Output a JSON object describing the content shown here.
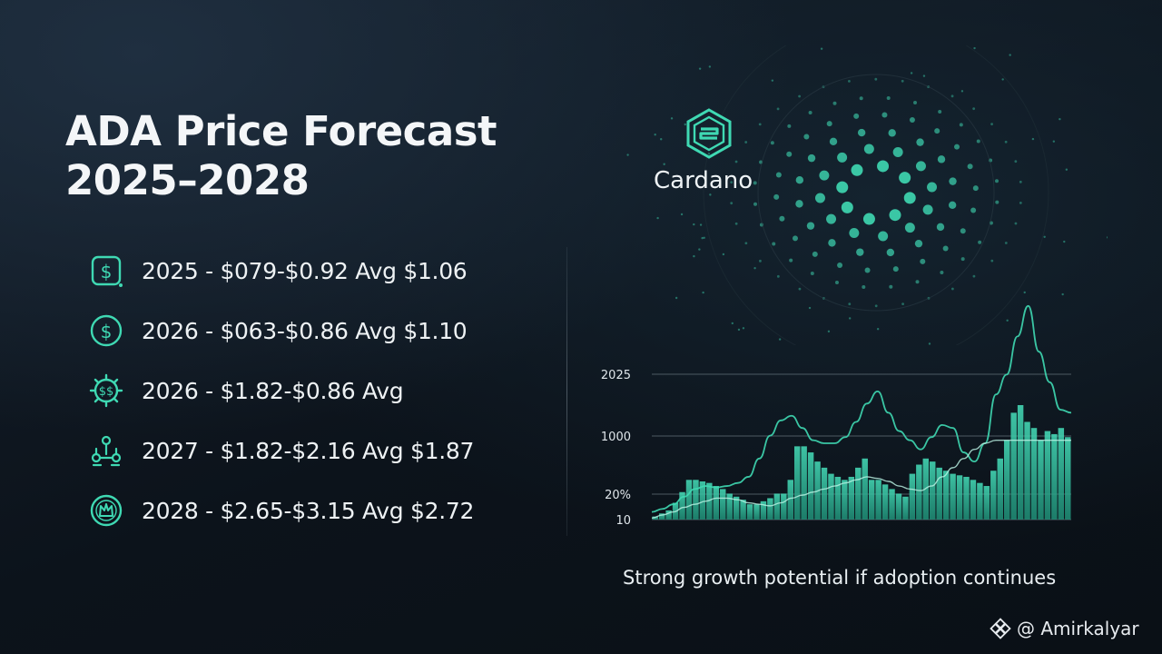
{
  "title": {
    "line1": "ADA Price Forecast",
    "line2": "2025–2028"
  },
  "forecasts": [
    {
      "icon": "dollar-square-icon",
      "text": "2025 - $079-$0.92 Avg $1.06"
    },
    {
      "icon": "dollar-circle-icon",
      "text": "2026 - $063-$0.86 Avg $1.10"
    },
    {
      "icon": "dollar-gear-icon",
      "text": "2026 - $1.82-$0.86 Avg"
    },
    {
      "icon": "network-nodes-icon",
      "text": "2027 - $1.82-$2.16 Avg $1.87"
    },
    {
      "icon": "crown-circle-icon",
      "text": "2028 - $2.65-$3.15 Avg $2.72"
    }
  ],
  "brand": {
    "name": "Cardano",
    "logo_icon": "cardano-hexagon-logo-icon"
  },
  "chart_data": {
    "type": "bar",
    "ytick_labels": [
      "2025",
      "1000",
      "20%",
      "10"
    ],
    "bars": [
      2,
      4,
      6,
      11,
      18,
      26,
      26,
      25,
      24,
      22,
      20,
      17,
      15,
      13,
      10,
      10,
      12,
      14,
      17,
      17,
      26,
      48,
      48,
      44,
      38,
      34,
      30,
      28,
      26,
      28,
      34,
      40,
      26,
      26,
      23,
      20,
      17,
      15,
      30,
      36,
      40,
      38,
      34,
      32,
      30,
      29,
      28,
      26,
      24,
      22,
      32,
      40,
      52,
      70,
      75,
      64,
      60,
      52,
      58,
      56,
      60,
      54
    ],
    "line_upper": [
      5,
      7,
      10,
      15,
      20,
      22,
      21,
      22,
      24,
      28,
      40,
      55,
      65,
      68,
      60,
      52,
      50,
      50,
      54,
      64,
      76,
      84,
      70,
      58,
      52,
      46,
      54,
      62,
      60,
      44,
      38,
      50,
      82,
      95,
      120,
      140,
      110,
      90,
      72,
      70
    ],
    "line_lower": [
      1,
      3,
      5,
      8,
      10,
      12,
      14,
      14,
      13,
      11,
      10,
      9,
      11,
      14,
      16,
      18,
      20,
      22,
      24,
      26,
      28,
      27,
      25,
      22,
      20,
      19,
      22,
      28,
      34,
      40,
      46,
      50,
      52,
      52,
      52,
      52,
      52,
      52,
      52,
      52
    ],
    "colors": {
      "accent": "#3fd9b3",
      "accent_dark": "#1f8f77",
      "grid": "#5d6b73"
    }
  },
  "caption": "Strong growth potential if adoption continues",
  "watermark": {
    "icon": "binance-diamond-icon",
    "handle": "@ Amirkalyar"
  }
}
